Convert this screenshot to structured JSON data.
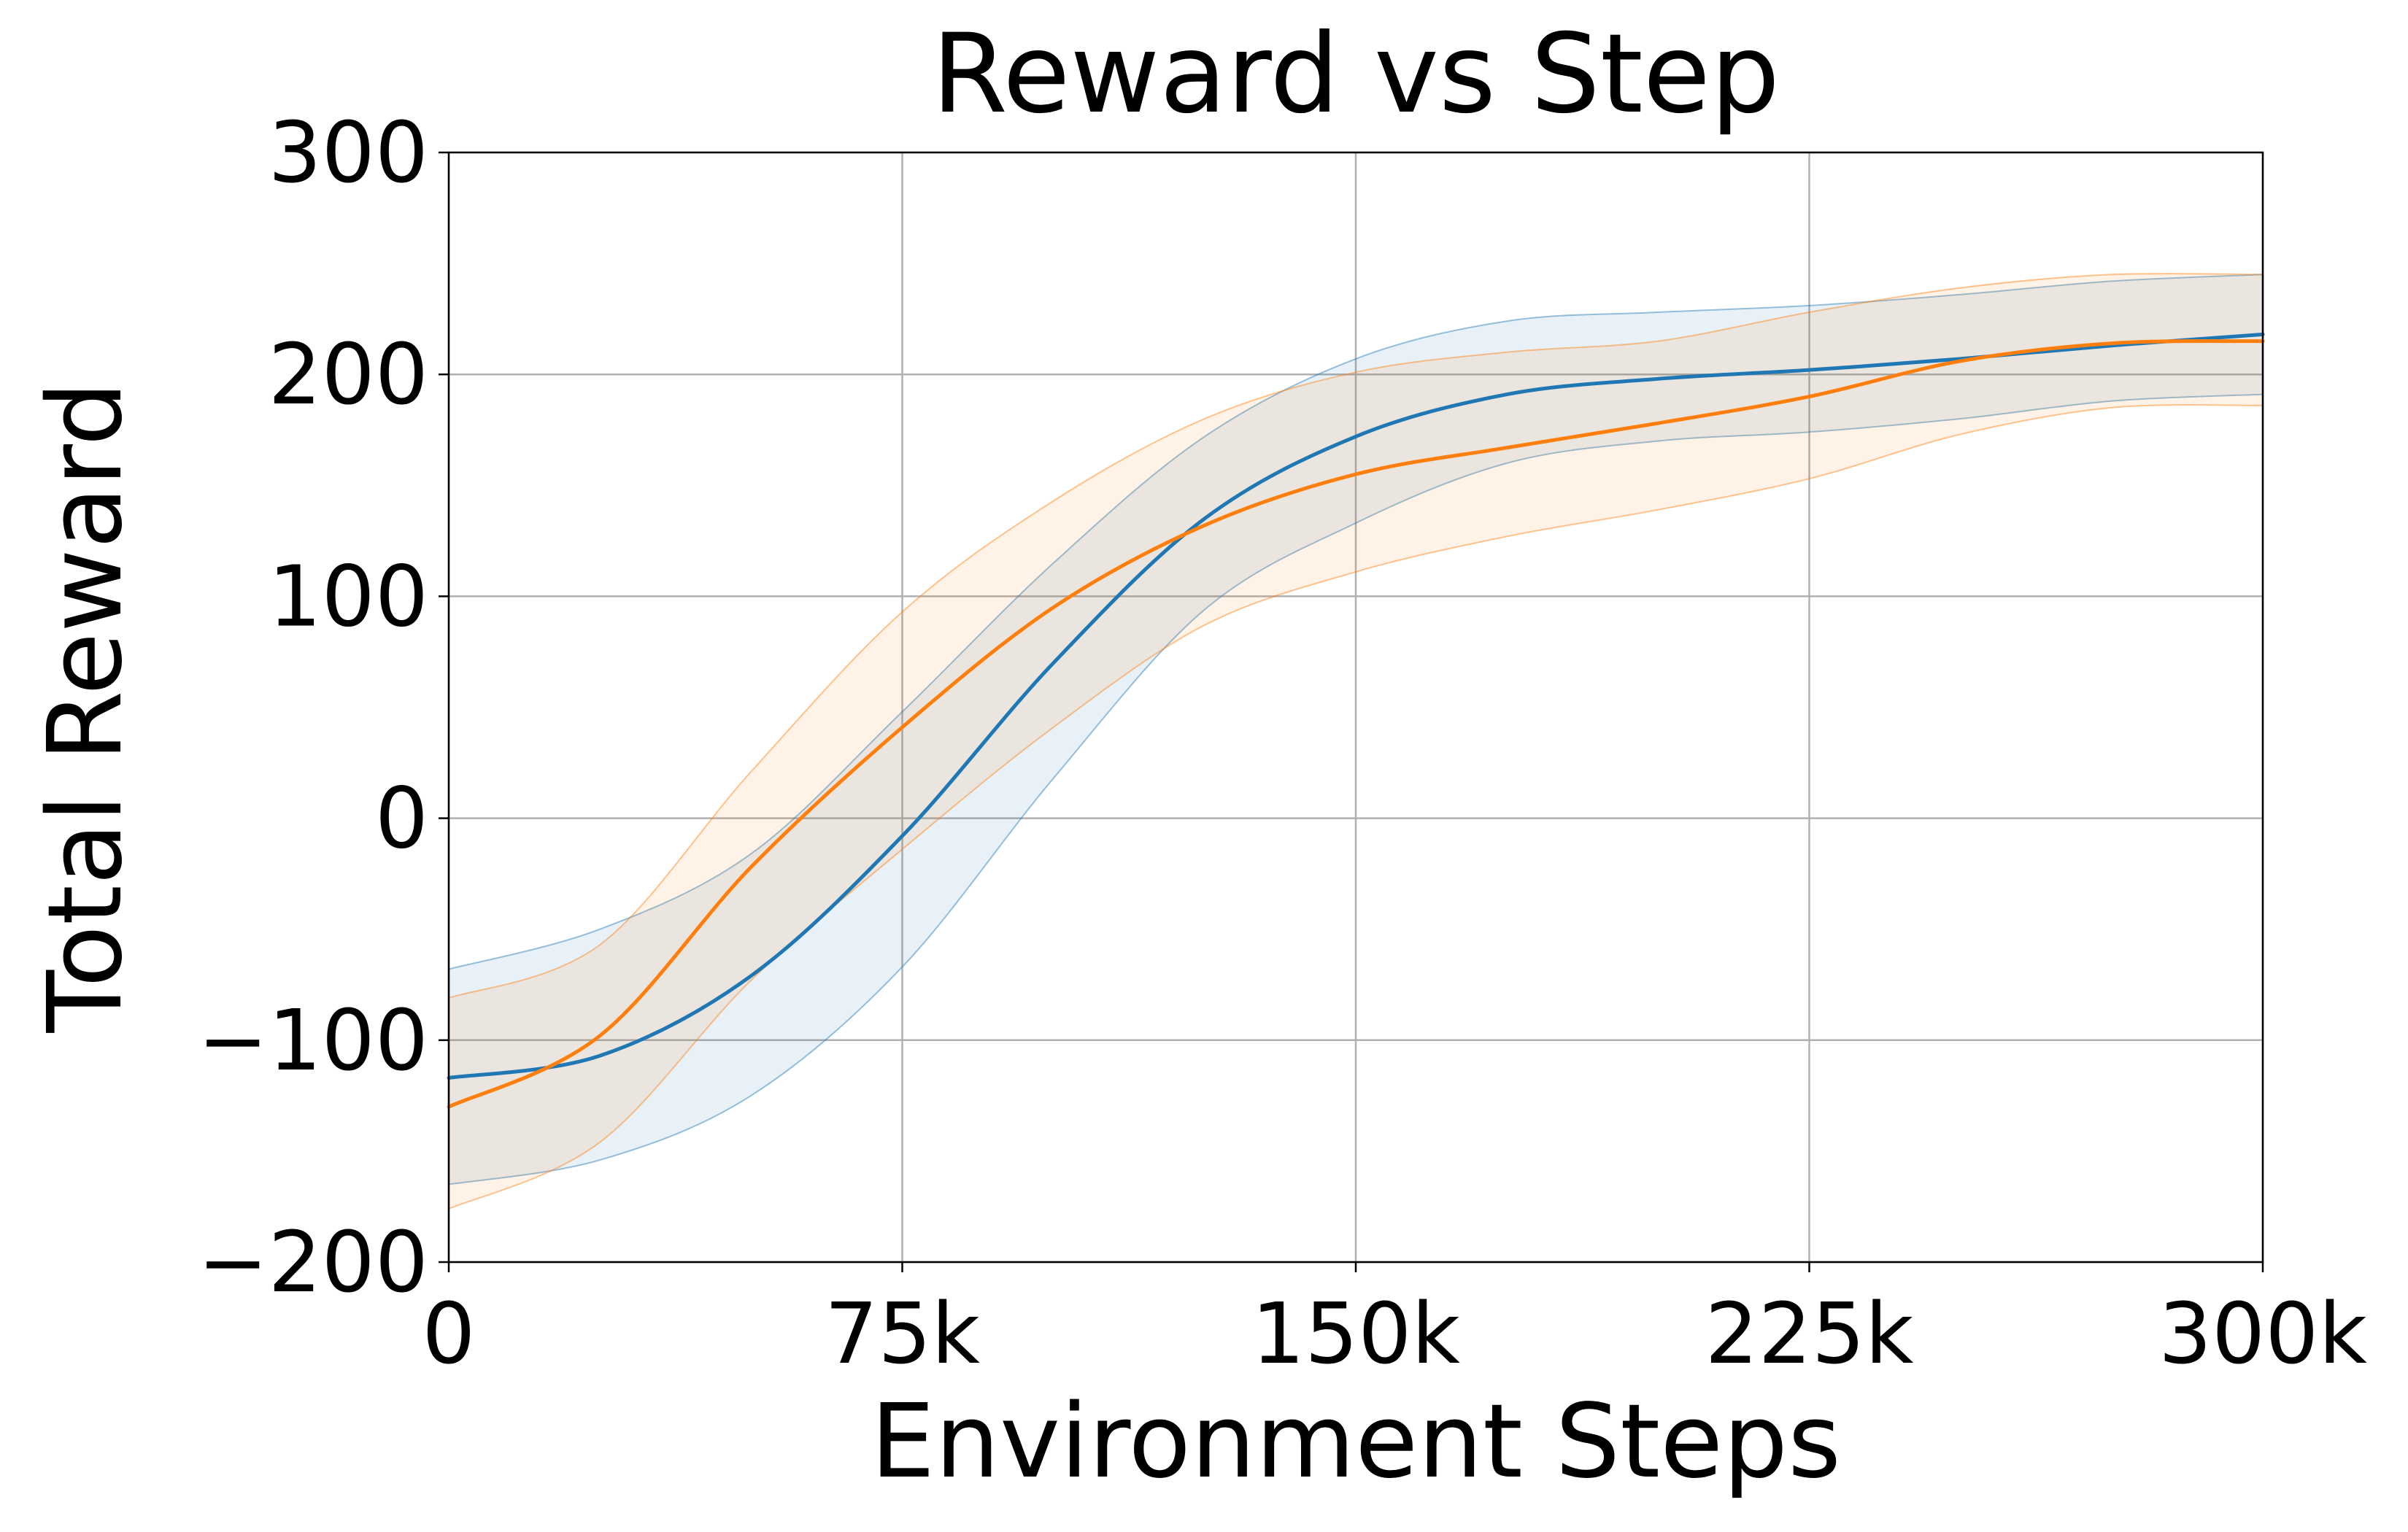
{
  "chart_data": {
    "type": "line",
    "title": "Reward vs Step",
    "xlabel": "Environment Steps",
    "ylabel": "Total Reward",
    "xlim": [
      0,
      300000
    ],
    "ylim": [
      -200,
      300
    ],
    "xticks": [
      0,
      75000,
      150000,
      225000,
      300000
    ],
    "xtick_labels": [
      "0",
      "75k",
      "150k",
      "225k",
      "300k"
    ],
    "yticks": [
      -200,
      -100,
      0,
      100,
      200,
      300
    ],
    "ytick_labels": [
      "−200",
      "−100",
      "0",
      "100",
      "200",
      "300"
    ],
    "grid": true,
    "legend": "none",
    "x": [
      0,
      25000,
      50000,
      75000,
      100000,
      125000,
      150000,
      175000,
      200000,
      225000,
      250000,
      275000,
      300000
    ],
    "series": [
      {
        "color": "#1f77b4",
        "mean": [
          -117,
          -107,
          -71,
          -8,
          70,
          135,
          172,
          191,
          198,
          202,
          207,
          213,
          218
        ],
        "upper": [
          -68,
          -50,
          -16,
          48,
          115,
          172,
          207,
          224,
          228,
          231,
          236,
          242,
          245
        ],
        "lower": [
          -165,
          -154,
          -125,
          -67,
          18,
          94,
          133,
          160,
          170,
          174,
          180,
          188,
          191
        ]
      },
      {
        "color": "#ff7f0e",
        "mean": [
          -130,
          -98,
          -22,
          41,
          95,
          132,
          155,
          167,
          178,
          190,
          206,
          214,
          215
        ],
        "upper": [
          -81,
          -57,
          21,
          93,
          143,
          180,
          201,
          210,
          215,
          228,
          239,
          245,
          245
        ],
        "lower": [
          -176,
          -146,
          -73,
          -14,
          41,
          87,
          111,
          127,
          139,
          153,
          173,
          185,
          186
        ]
      }
    ]
  }
}
